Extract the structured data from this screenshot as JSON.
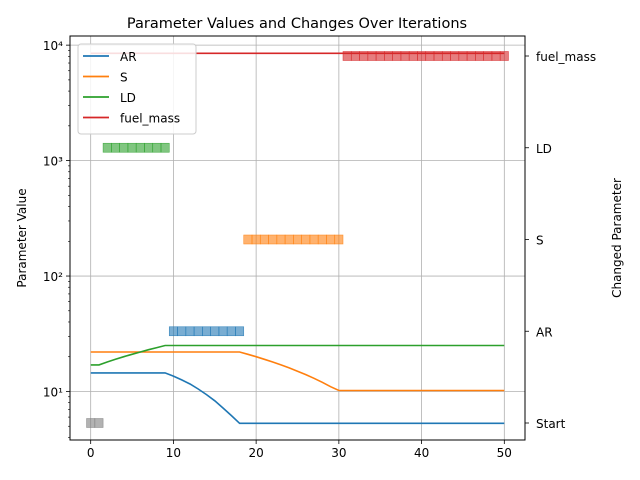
{
  "chart_data": {
    "type": "line",
    "title": "Parameter Values and Changes Over Iterations",
    "xlabel": "",
    "ylabel": "Parameter Value",
    "ylabel_right": "Changed Parameter",
    "x_scale": "linear",
    "y_scale": "log",
    "xlim": [
      -2.5,
      52.5
    ],
    "ylim": [
      3.8,
      12000
    ],
    "x_ticks": [
      0,
      10,
      20,
      30,
      40,
      50
    ],
    "y_ticks": [
      {
        "value": 10,
        "label": "10¹"
      },
      {
        "value": 100,
        "label": "10²"
      },
      {
        "value": 1000,
        "label": "10³"
      },
      {
        "value": 10000,
        "label": "10⁴"
      }
    ],
    "right_ticks": [
      "Start",
      "AR",
      "S",
      "LD",
      "fuel_mass"
    ],
    "grid": true,
    "legend_position": "top-left",
    "series": [
      {
        "name": "AR",
        "color": "#1f77b4",
        "x": [
          0,
          9,
          10,
          11,
          12,
          13,
          14,
          15,
          16,
          17,
          18,
          19,
          50
        ],
        "y": [
          14.5,
          14.5,
          13.6,
          12.6,
          11.6,
          10.5,
          9.4,
          8.3,
          7.2,
          6.2,
          5.3,
          5.3,
          5.3
        ]
      },
      {
        "name": "S",
        "color": "#ff7f0e",
        "x": [
          0,
          18,
          19,
          20,
          21,
          22,
          23,
          24,
          25,
          26,
          27,
          28,
          29,
          30,
          31,
          50
        ],
        "y": [
          22,
          22,
          21,
          20,
          19,
          18,
          17,
          16,
          15,
          14,
          13,
          12,
          11,
          10.2,
          10.2,
          10.2
        ]
      },
      {
        "name": "LD",
        "color": "#2ca02c",
        "x": [
          0,
          1,
          2,
          3,
          4,
          5,
          6,
          7,
          8,
          9,
          10,
          50
        ],
        "y": [
          17,
          17,
          18,
          19,
          20,
          21,
          22,
          23,
          24,
          25,
          25,
          25
        ]
      },
      {
        "name": "fuel_mass",
        "color": "#d62728",
        "x": [
          0,
          50
        ],
        "y": [
          8500,
          8500
        ]
      }
    ],
    "changes": [
      {
        "parameter": "Start",
        "iterations": [
          0,
          1
        ],
        "color": "#7f7f7f"
      },
      {
        "parameter": "AR",
        "iterations": [
          10,
          11,
          12,
          13,
          14,
          15,
          16,
          17,
          18
        ],
        "color": "#1f77b4"
      },
      {
        "parameter": "S",
        "iterations": [
          19,
          20,
          21,
          22,
          23,
          24,
          25,
          26,
          27,
          28,
          29,
          30
        ],
        "color": "#ff7f0e"
      },
      {
        "parameter": "LD",
        "iterations": [
          2,
          3,
          4,
          5,
          6,
          7,
          8,
          9
        ],
        "color": "#2ca02c"
      },
      {
        "parameter": "fuel_mass",
        "iterations": [
          31,
          32,
          33,
          34,
          35,
          36,
          37,
          38,
          39,
          40,
          41,
          42,
          43,
          44,
          45,
          46,
          47,
          48,
          49,
          50
        ],
        "color": "#d62728"
      }
    ]
  }
}
